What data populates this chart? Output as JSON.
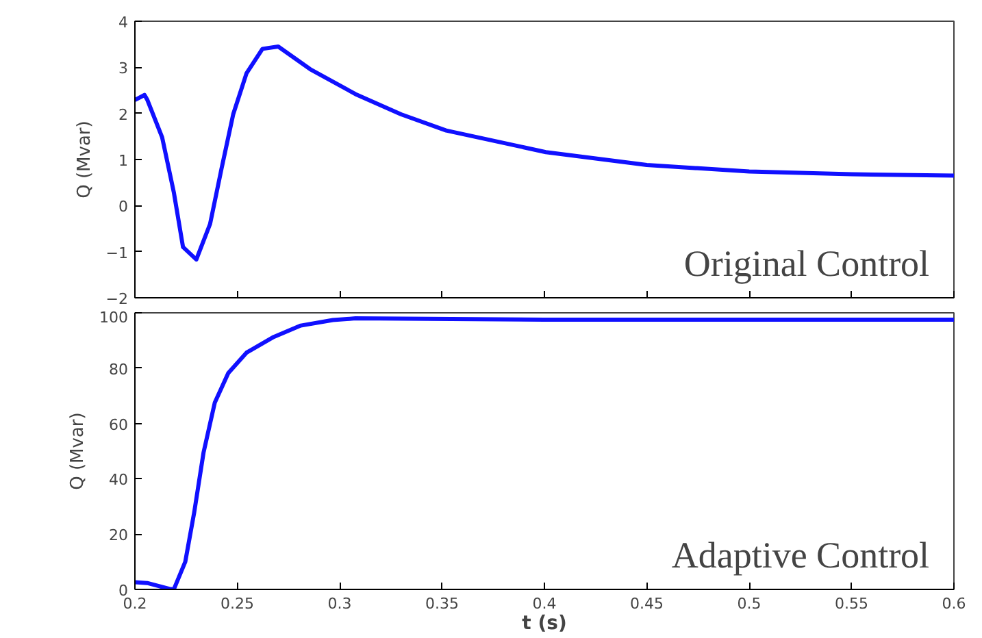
{
  "chart_data": [
    {
      "type": "line",
      "ylabel": "Q (Mvar)",
      "annotations": [
        "Original Control"
      ],
      "tick_labels": "y",
      "line_style": "solid",
      "x": [
        0.2,
        0.2047,
        0.206,
        0.2133,
        0.219,
        0.2235,
        0.23,
        0.2367,
        0.2423,
        0.248,
        0.2545,
        0.2623,
        0.27,
        0.2856,
        0.3077,
        0.33,
        0.352,
        0.4007,
        0.45,
        0.5,
        0.55,
        0.6
      ],
      "series": [
        {
          "color": "#1010ff",
          "values": [
            2.29,
            2.4,
            2.3,
            1.48,
            0.29,
            -0.9,
            -1.17,
            -0.4,
            0.8,
            1.98,
            2.87,
            3.4,
            3.45,
            2.96,
            2.42,
            1.98,
            1.63,
            1.16,
            0.88,
            0.74,
            0.68,
            0.65
          ]
        }
      ],
      "xlim": [
        0.2,
        0.6
      ],
      "xticks": [
        0.2,
        0.25,
        0.3,
        0.35,
        0.4,
        0.45,
        0.5,
        0.55,
        0.6
      ],
      "ylim": [
        -2,
        4
      ],
      "yticks": [
        -2,
        -1,
        0,
        1,
        2,
        3,
        4
      ]
    },
    {
      "type": "line",
      "xlabel": "t (s)",
      "ylabel": "Q (Mvar)",
      "annotations": [
        "Adaptive Control"
      ],
      "line_style": "solid",
      "x": [
        0.2,
        0.206,
        0.2168,
        0.219,
        0.2246,
        0.229,
        0.2335,
        0.239,
        0.2456,
        0.2545,
        0.2678,
        0.281,
        0.2967,
        0.3077,
        0.4,
        0.5,
        0.6
      ],
      "series": [
        {
          "color": "#1010ff",
          "values": [
            2.6,
            2.3,
            0.2,
            0,
            10,
            28,
            49.4,
            67.5,
            78.2,
            85.6,
            91.3,
            95.4,
            97.4,
            98,
            97.5,
            97.5,
            97.5
          ]
        }
      ],
      "xlim": [
        0.2,
        0.6
      ],
      "xticks": [
        0.2,
        0.25,
        0.3,
        0.35,
        0.4,
        0.45,
        0.5,
        0.55,
        0.6
      ],
      "ylim": [
        0,
        100
      ],
      "yticks": [
        0,
        20,
        40,
        60,
        80,
        100
      ]
    }
  ]
}
